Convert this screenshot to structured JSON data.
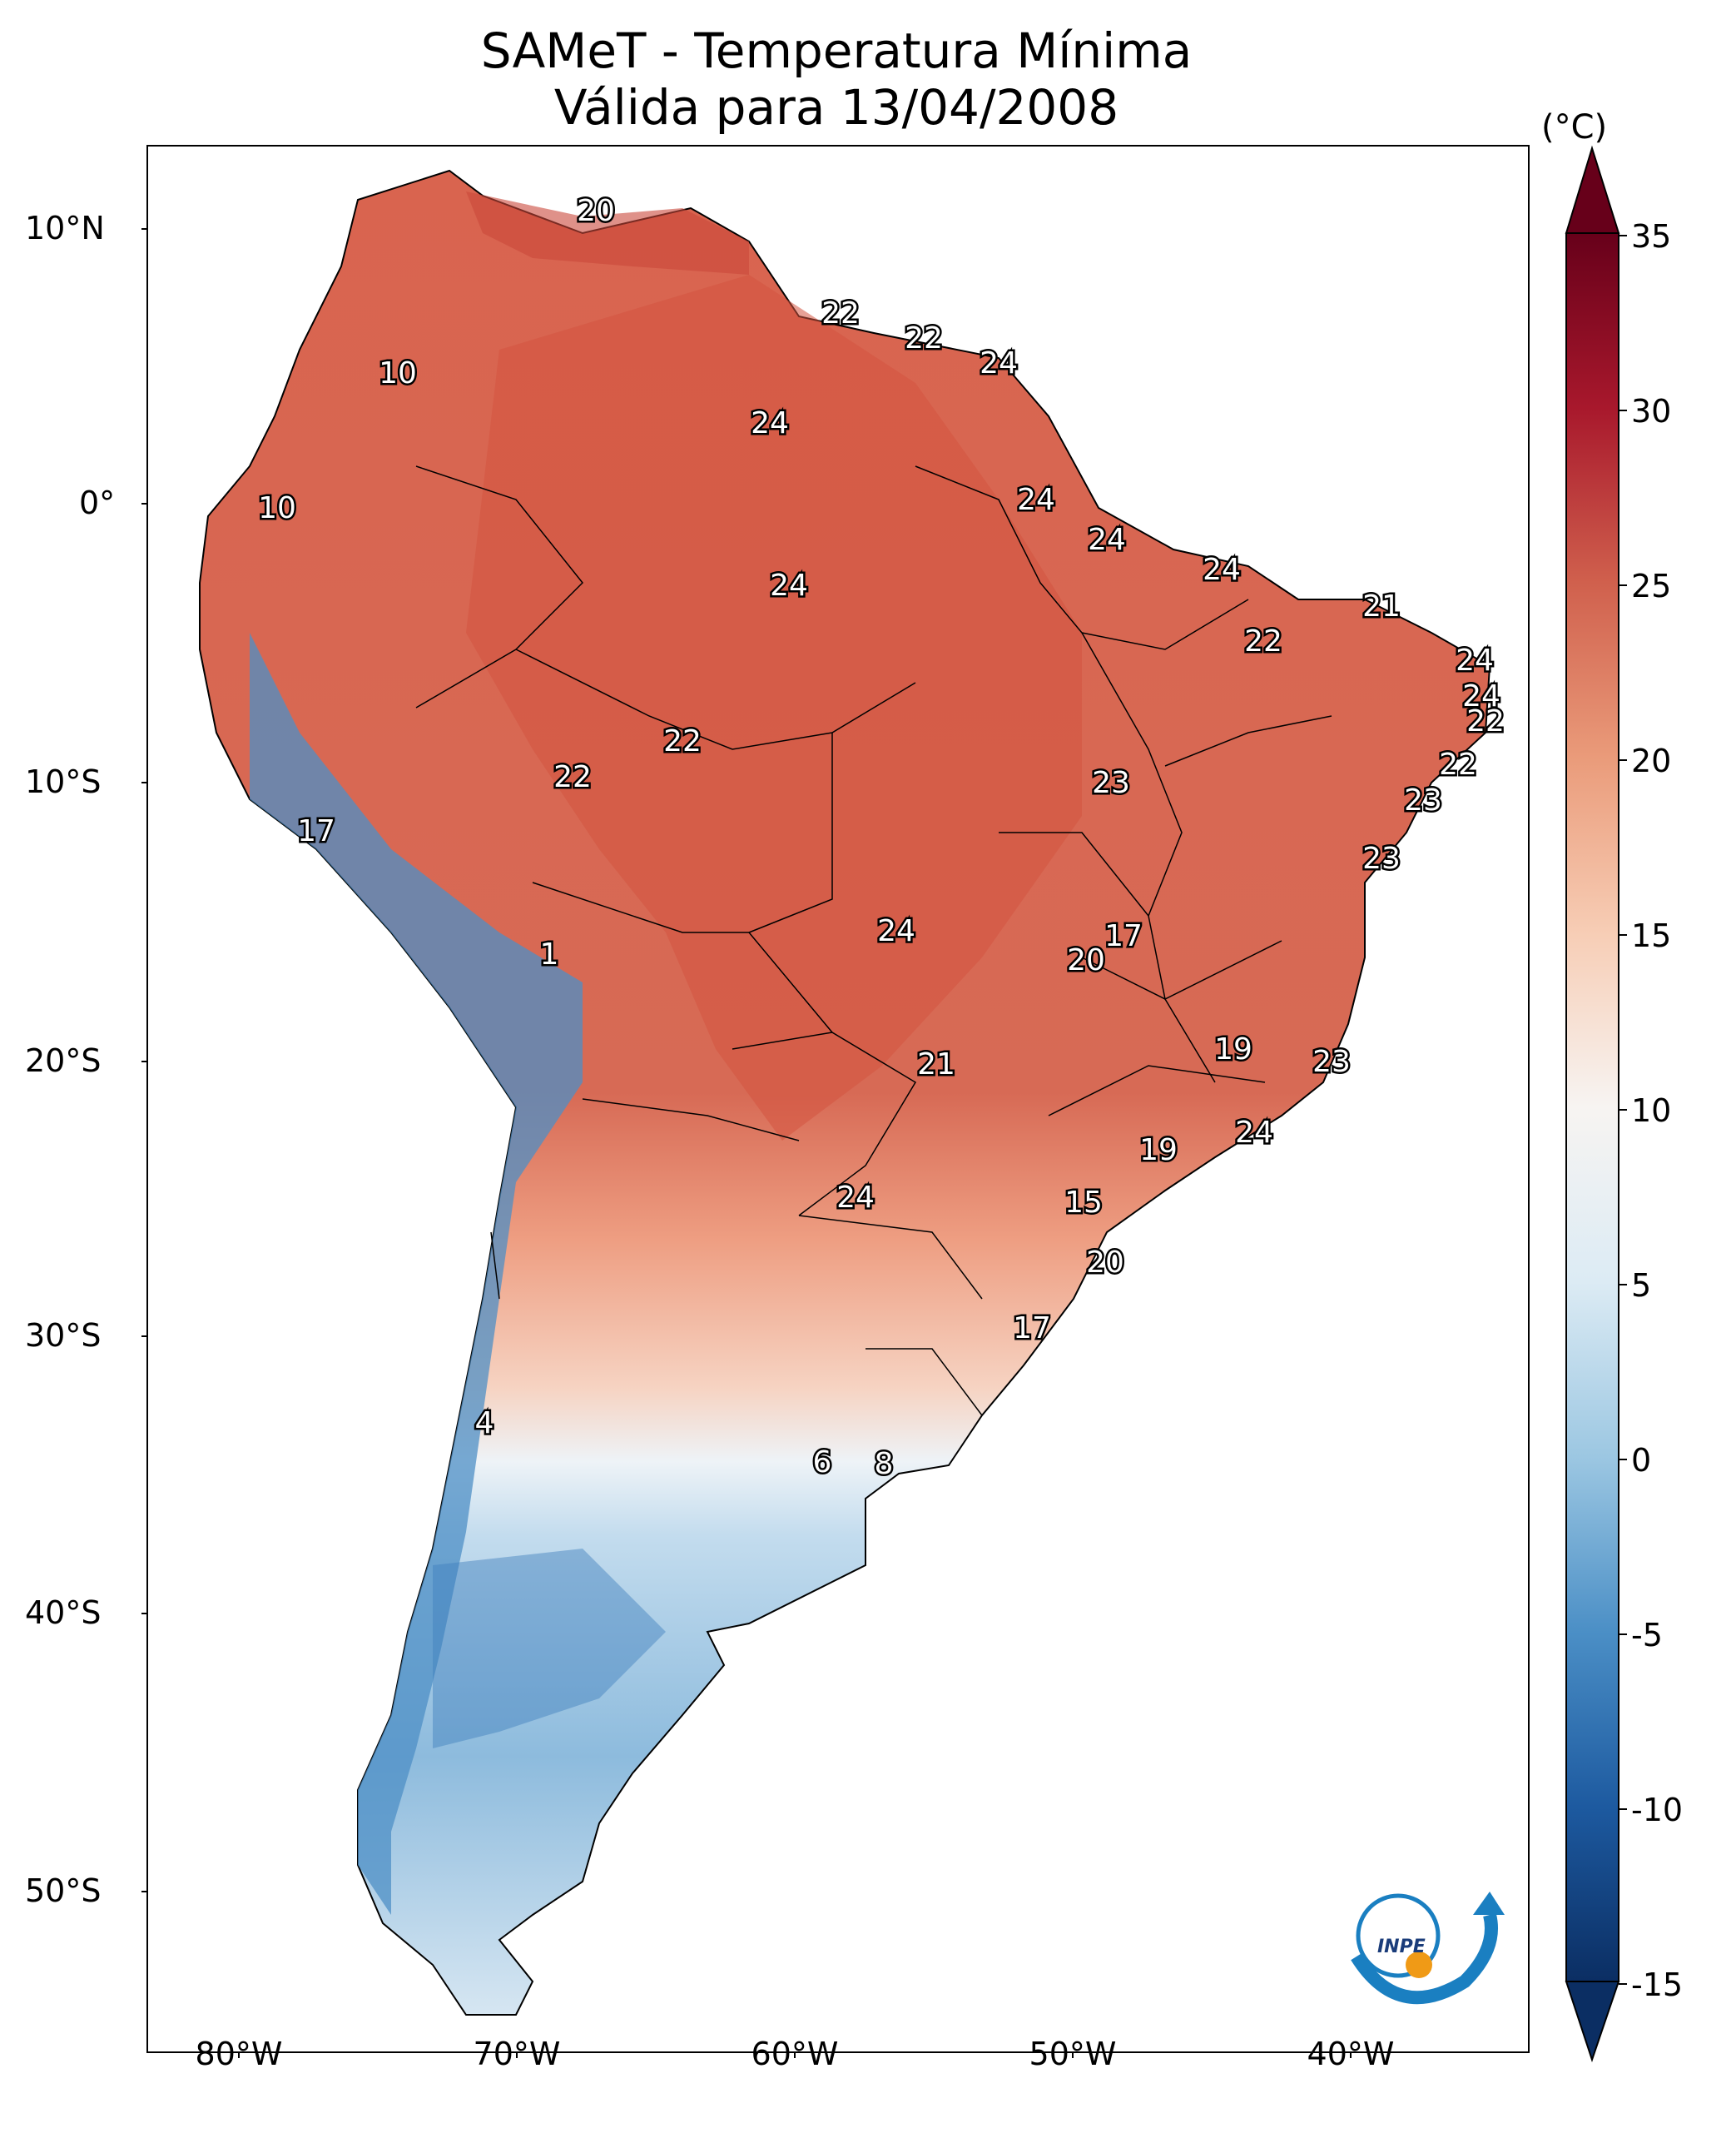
{
  "title_line1": "SAMeT - Temperatura Mínima",
  "title_line2": "Válida para 13/04/2008",
  "colorbar": {
    "unit": "(°C)",
    "ticks": [
      "35",
      "30",
      "25",
      "20",
      "15",
      "10",
      "5",
      "0",
      "-5",
      "-10",
      "-15"
    ],
    "range": [
      -15,
      35
    ],
    "colors": [
      "#0b2e63",
      "#2a6db0",
      "#6ea9d2",
      "#c6dcec",
      "#f6f6f6",
      "#f7c7ad",
      "#ea8e6c",
      "#d1584a",
      "#a8162a",
      "#6b0016"
    ]
  },
  "axes": {
    "lat_labels": [
      "10°N",
      "0°",
      "10°S",
      "20°S",
      "30°S",
      "40°S",
      "50°S"
    ],
    "lon_labels": [
      "80°W",
      "70°W",
      "60°W",
      "50°W",
      "40°W"
    ]
  },
  "labels": [
    {
      "text": "20"
    },
    {
      "text": "22"
    },
    {
      "text": "22"
    },
    {
      "text": "24"
    },
    {
      "text": "10"
    },
    {
      "text": "24"
    },
    {
      "text": "10"
    },
    {
      "text": "24"
    },
    {
      "text": "24"
    },
    {
      "text": "24"
    },
    {
      "text": "24"
    },
    {
      "text": "21"
    },
    {
      "text": "22"
    },
    {
      "text": "24"
    },
    {
      "text": "24"
    },
    {
      "text": "22"
    },
    {
      "text": "22"
    },
    {
      "text": "22"
    },
    {
      "text": "22"
    },
    {
      "text": "23"
    },
    {
      "text": "23"
    },
    {
      "text": "17"
    },
    {
      "text": "23"
    },
    {
      "text": "1"
    },
    {
      "text": "24"
    },
    {
      "text": "17"
    },
    {
      "text": "20"
    },
    {
      "text": "19"
    },
    {
      "text": "21"
    },
    {
      "text": "23"
    },
    {
      "text": "24"
    },
    {
      "text": "19"
    },
    {
      "text": "24"
    },
    {
      "text": "15"
    },
    {
      "text": "20"
    },
    {
      "text": "17"
    },
    {
      "text": "4"
    },
    {
      "text": "6"
    },
    {
      "text": "8"
    }
  ],
  "logo": {
    "text": "INPE"
  }
}
